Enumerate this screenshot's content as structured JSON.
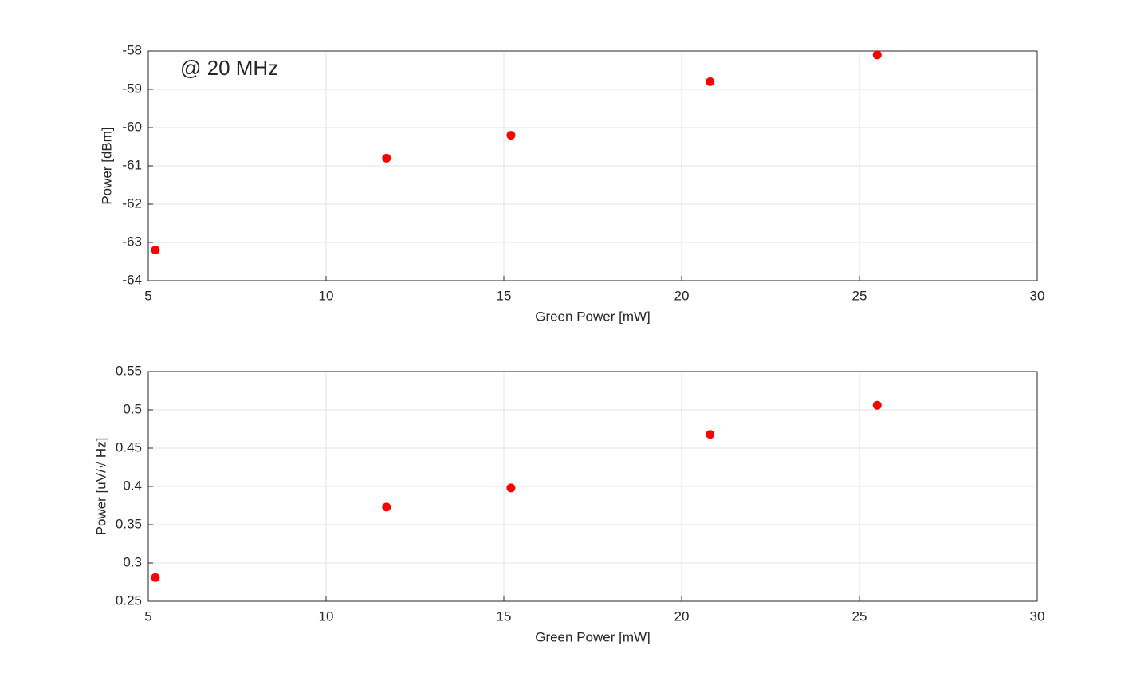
{
  "chart_data": [
    {
      "type": "scatter",
      "annotation": "@ 20 MHz",
      "xlabel": "Green Power [mW]",
      "ylabel": "Power [dBm]",
      "x": [
        5.2,
        11.7,
        15.2,
        20.8,
        25.5
      ],
      "values": [
        -63.2,
        -60.8,
        -60.2,
        -58.8,
        -58.1
      ],
      "color": "#ff0000",
      "xlim": [
        5,
        30
      ],
      "xticks": [
        5,
        10,
        15,
        20,
        25,
        30
      ],
      "ylim": [
        -64,
        -58
      ],
      "yticks": [
        -64,
        -63,
        -62,
        -61,
        -60,
        -59,
        -58
      ],
      "grid": true
    },
    {
      "type": "scatter",
      "xlabel": "Green Power [mW]",
      "ylabel": "Power [uV/√ Hz]",
      "x": [
        5.2,
        11.7,
        15.2,
        20.8,
        25.5
      ],
      "values": [
        0.281,
        0.373,
        0.398,
        0.468,
        0.506
      ],
      "color": "#ff0000",
      "xlim": [
        5,
        30
      ],
      "xticks": [
        5,
        10,
        15,
        20,
        25,
        30
      ],
      "ylim": [
        0.25,
        0.55
      ],
      "yticks": [
        0.25,
        0.3,
        0.35,
        0.4,
        0.45,
        0.5,
        0.55
      ],
      "grid": true
    }
  ]
}
